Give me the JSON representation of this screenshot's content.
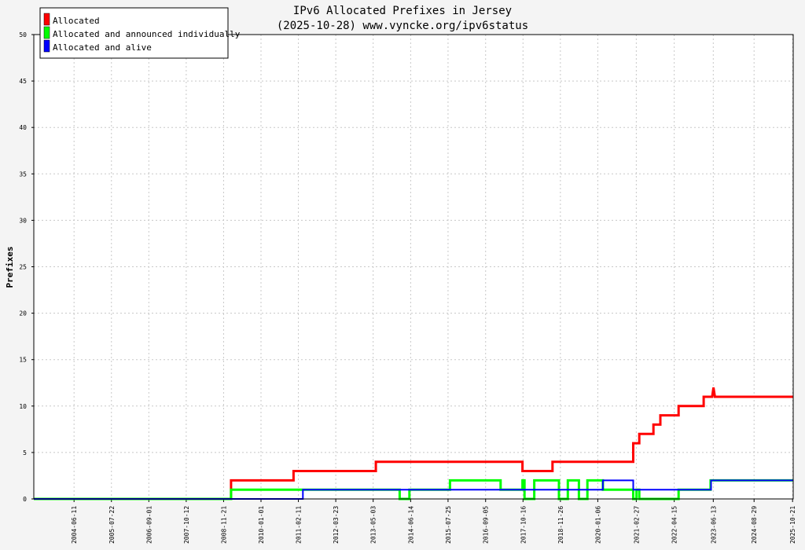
{
  "chart_data": {
    "type": "line",
    "title": "IPv6 Allocated Prefixes in Jersey",
    "subtitle": "(2025-10-28) www.vyncke.org/ipv6status",
    "ylabel": "Prefixes",
    "ylim": [
      0,
      50
    ],
    "y_ticks": [
      0,
      5,
      10,
      15,
      20,
      25,
      30,
      35,
      40,
      45,
      50
    ],
    "xlim": [
      "2003-04-01",
      "2025-10-28"
    ],
    "x_ticks": [
      "2004-06-11",
      "2005-07-22",
      "2006-09-01",
      "2007-10-12",
      "2008-11-21",
      "2010-01-01",
      "2011-02-11",
      "2012-03-23",
      "2013-05-03",
      "2014-06-14",
      "2015-07-25",
      "2016-09-05",
      "2017-10-16",
      "2018-11-26",
      "2020-01-06",
      "2021-02-27",
      "2022-04-15",
      "2023-06-13",
      "2024-08-29",
      "2025-10-21"
    ],
    "grid": true,
    "legend_position": "top-left",
    "series": [
      {
        "name": "Allocated",
        "color": "#ff0000",
        "points": [
          [
            "2003-04-01",
            0
          ],
          [
            "2009-02-10",
            0
          ],
          [
            "2009-02-10",
            2
          ],
          [
            "2010-12-20",
            2
          ],
          [
            "2010-12-20",
            3
          ],
          [
            "2013-06-01",
            3
          ],
          [
            "2013-06-01",
            4
          ],
          [
            "2017-10-10",
            4
          ],
          [
            "2017-10-10",
            3
          ],
          [
            "2018-09-01",
            3
          ],
          [
            "2018-09-01",
            4
          ],
          [
            "2021-01-25",
            4
          ],
          [
            "2021-01-25",
            6
          ],
          [
            "2021-04-01",
            6
          ],
          [
            "2021-04-01",
            7
          ],
          [
            "2021-09-01",
            7
          ],
          [
            "2021-09-01",
            8
          ],
          [
            "2021-11-15",
            8
          ],
          [
            "2021-11-15",
            9
          ],
          [
            "2022-06-01",
            9
          ],
          [
            "2022-06-01",
            10
          ],
          [
            "2023-03-01",
            10
          ],
          [
            "2023-03-01",
            11
          ],
          [
            "2023-06-01",
            11
          ],
          [
            "2023-06-15",
            12
          ],
          [
            "2023-07-01",
            11
          ],
          [
            "2025-10-28",
            11
          ]
        ]
      },
      {
        "name": "Allocated and announced individually",
        "color": "#00ff00",
        "points": [
          [
            "2003-04-01",
            0
          ],
          [
            "2009-02-10",
            0
          ],
          [
            "2009-02-10",
            1
          ],
          [
            "2014-02-15",
            1
          ],
          [
            "2014-02-15",
            0
          ],
          [
            "2014-06-01",
            0
          ],
          [
            "2014-06-01",
            1
          ],
          [
            "2015-08-15",
            1
          ],
          [
            "2015-08-15",
            2
          ],
          [
            "2017-02-15",
            2
          ],
          [
            "2017-02-15",
            1
          ],
          [
            "2017-10-10",
            1
          ],
          [
            "2017-10-10",
            2
          ],
          [
            "2017-11-01",
            2
          ],
          [
            "2017-11-01",
            0
          ],
          [
            "2018-02-15",
            0
          ],
          [
            "2018-02-15",
            2
          ],
          [
            "2018-11-10",
            2
          ],
          [
            "2018-11-10",
            0
          ],
          [
            "2019-02-15",
            0
          ],
          [
            "2019-02-15",
            2
          ],
          [
            "2019-06-15",
            2
          ],
          [
            "2019-06-15",
            0
          ],
          [
            "2019-09-15",
            0
          ],
          [
            "2019-09-15",
            2
          ],
          [
            "2020-03-01",
            2
          ],
          [
            "2020-03-01",
            1
          ],
          [
            "2021-01-25",
            1
          ],
          [
            "2021-01-25",
            0
          ],
          [
            "2021-03-01",
            0
          ],
          [
            "2021-03-01",
            1
          ],
          [
            "2021-04-01",
            1
          ],
          [
            "2021-04-01",
            0
          ],
          [
            "2022-06-01",
            0
          ],
          [
            "2022-06-01",
            1
          ],
          [
            "2023-05-15",
            1
          ],
          [
            "2023-05-15",
            2
          ],
          [
            "2025-10-28",
            2
          ]
        ]
      },
      {
        "name": "Allocated and alive",
        "color": "#0000ff",
        "points": [
          [
            "2003-04-01",
            0
          ],
          [
            "2011-04-01",
            0
          ],
          [
            "2011-04-01",
            1
          ],
          [
            "2020-03-01",
            1
          ],
          [
            "2020-03-01",
            2
          ],
          [
            "2021-01-25",
            2
          ],
          [
            "2021-01-25",
            1
          ],
          [
            "2023-05-20",
            1
          ],
          [
            "2023-05-20",
            2
          ],
          [
            "2025-10-28",
            2
          ]
        ]
      }
    ]
  }
}
